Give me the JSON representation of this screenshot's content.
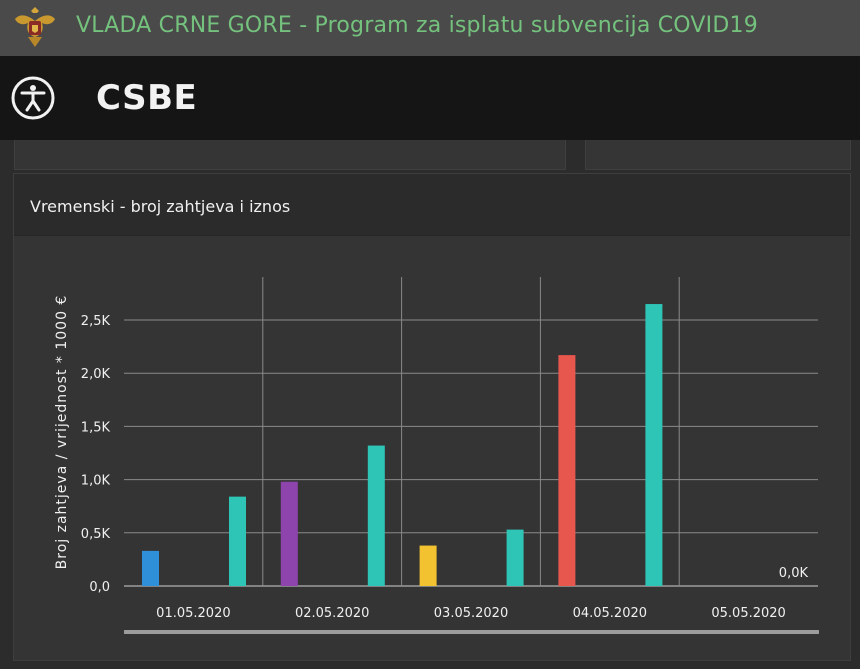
{
  "header": {
    "title": "VLADA CRNE GORE - Program za isplatu subvencija COVID19",
    "crest_icon": "montenegro-crest-icon"
  },
  "subheader": {
    "title": "CSBE",
    "accessibility_icon": "accessibility-icon"
  },
  "panel": {
    "title": "Vremenski - broj zahtjeva i iznos"
  },
  "colors": {
    "header_bg": "#4a4a4a",
    "title_green": "#74c27d",
    "blue": "#2f8fd8",
    "teal": "#2ec4b6",
    "purple": "#8e44ad",
    "yellow": "#f2c230",
    "red": "#e8574e"
  },
  "chart_data": {
    "type": "bar",
    "ylabel": "Broj zahtjeva / vrijednost * 1000 €",
    "xlabel": "",
    "ylim": [
      0,
      2800
    ],
    "ytick_values": [
      0,
      500,
      1000,
      1500,
      2000,
      2500
    ],
    "ytick_labels": [
      "0,0",
      "0,5K",
      "1,0K",
      "1,5K",
      "2,0K",
      "2,5K"
    ],
    "categories": [
      "01.05.2020",
      "02.05.2020",
      "03.05.2020",
      "04.05.2020",
      "05.05.2020"
    ],
    "grid": true,
    "groups": [
      {
        "category": "01.05.2020",
        "bars": [
          {
            "value": 330,
            "color": "#2f8fd8"
          },
          {
            "value": 840,
            "color": "#2ec4b6"
          }
        ]
      },
      {
        "category": "02.05.2020",
        "bars": [
          {
            "value": 980,
            "color": "#8e44ad"
          },
          {
            "value": 1320,
            "color": "#2ec4b6"
          }
        ]
      },
      {
        "category": "03.05.2020",
        "bars": [
          {
            "value": 380,
            "color": "#f2c230"
          },
          {
            "value": 530,
            "color": "#2ec4b6"
          }
        ]
      },
      {
        "category": "04.05.2020",
        "bars": [
          {
            "value": 2170,
            "color": "#e8574e"
          },
          {
            "value": 2650,
            "color": "#2ec4b6"
          }
        ]
      },
      {
        "category": "05.05.2020",
        "bars": [
          {
            "value": 0,
            "color": "#2ec4b6",
            "label": "0,0K"
          }
        ]
      }
    ]
  }
}
